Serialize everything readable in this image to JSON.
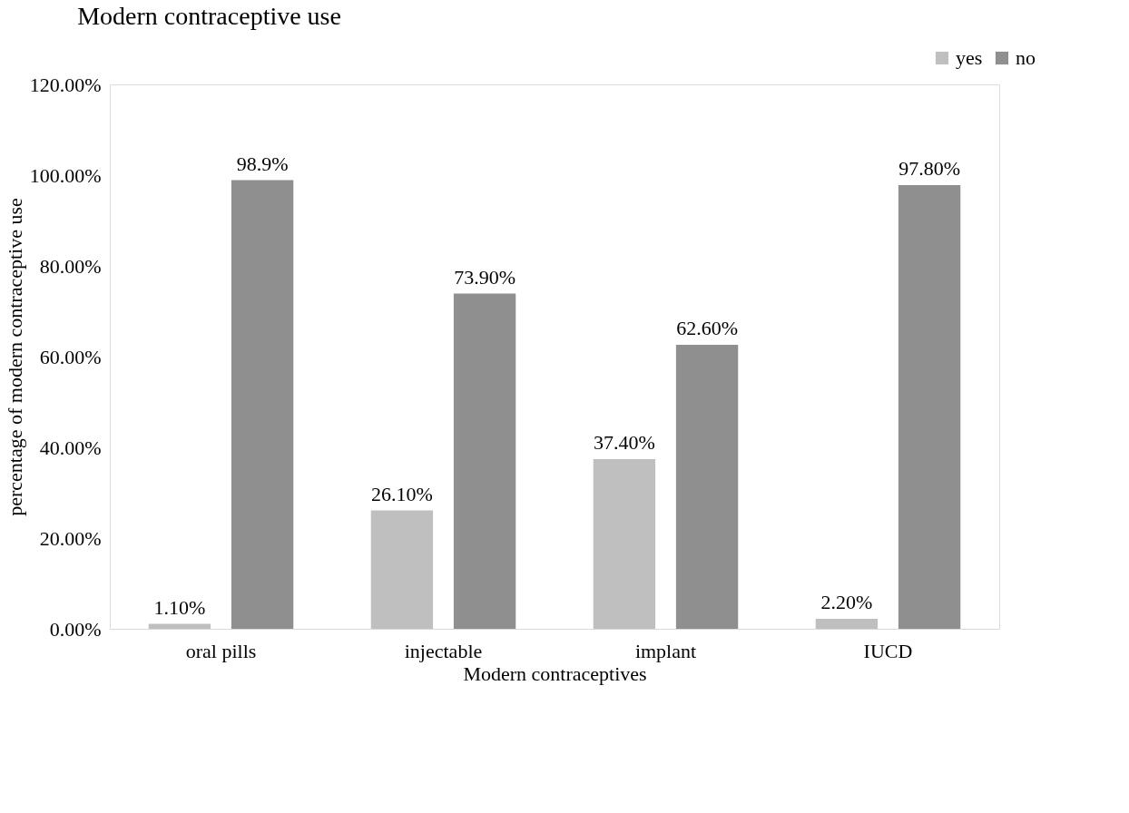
{
  "chart_data": {
    "type": "bar",
    "title": "Modern contraceptive use",
    "xlabel": "Modern contraceptives",
    "ylabel": "percentage of modern contraceptive use",
    "categories": [
      "oral pills",
      "injectable",
      "implant",
      "IUCD"
    ],
    "series": [
      {
        "name": "yes",
        "color": "#bfbfbf",
        "values": [
          1.1,
          26.1,
          37.4,
          2.2
        ],
        "value_labels": [
          "1.10%",
          "26.10%",
          "37.40%",
          "2.20%"
        ]
      },
      {
        "name": "no",
        "color": "#8f8f8f",
        "values": [
          98.9,
          73.9,
          62.6,
          97.8
        ],
        "value_labels": [
          "98.9%",
          "73.90%",
          "62.60%",
          "97.80%"
        ]
      }
    ],
    "ylim": [
      0,
      120
    ],
    "yticks": [
      {
        "value": 0,
        "label": "0.00%"
      },
      {
        "value": 20,
        "label": "20.00%"
      },
      {
        "value": 40,
        "label": "40.00%"
      },
      {
        "value": 60,
        "label": "60.00%"
      },
      {
        "value": 80,
        "label": "80.00%"
      },
      {
        "value": 100,
        "label": "100.00%"
      },
      {
        "value": 120,
        "label": "120.00%"
      }
    ],
    "grid": false,
    "legend": "top right"
  }
}
